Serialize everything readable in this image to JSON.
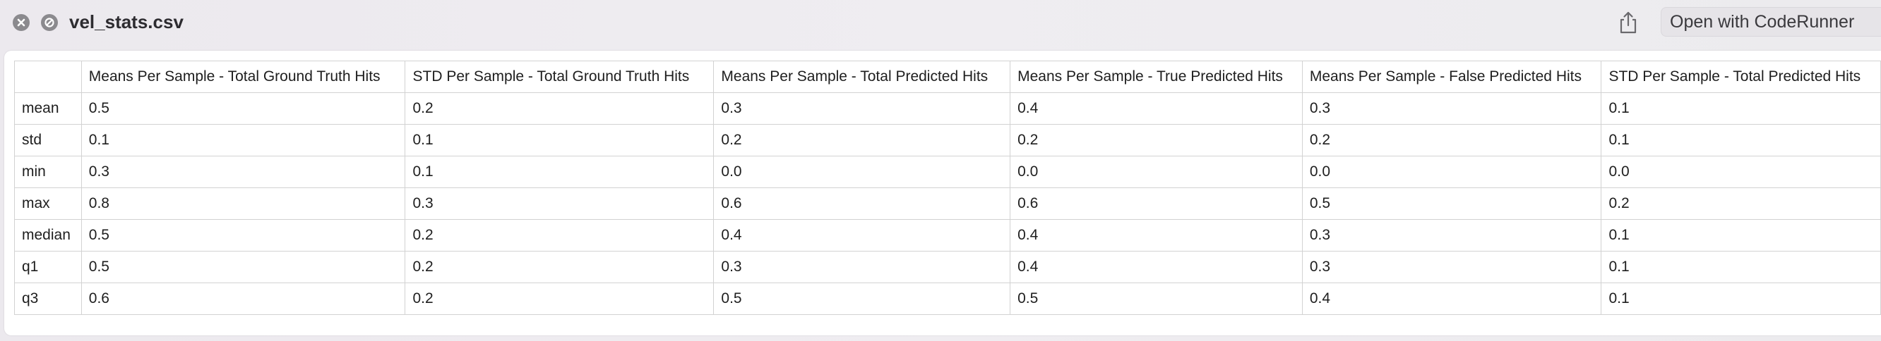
{
  "window": {
    "title": "vel_stats.csv",
    "open_with_label": "Open with CodeRunner"
  },
  "table": {
    "columns": [
      "",
      "Means Per Sample - Total Ground Truth Hits",
      "STD Per Sample - Total Ground Truth Hits",
      "Means Per Sample - Total Predicted Hits",
      "Means Per Sample - True Predicted Hits",
      "Means Per Sample - False Predicted Hits",
      "STD Per Sample - Total Predicted Hits"
    ],
    "rows": [
      [
        "mean",
        "0.5",
        "0.2",
        "0.3",
        "0.4",
        "0.3",
        "0.1"
      ],
      [
        "std",
        "0.1",
        "0.1",
        "0.2",
        "0.2",
        "0.2",
        "0.1"
      ],
      [
        "min",
        "0.3",
        "0.1",
        "0.0",
        "0.0",
        "0.0",
        "0.0"
      ],
      [
        "max",
        "0.8",
        "0.3",
        "0.6",
        "0.6",
        "0.5",
        "0.2"
      ],
      [
        "median",
        "0.5",
        "0.2",
        "0.4",
        "0.4",
        "0.3",
        "0.1"
      ],
      [
        "q1",
        "0.5",
        "0.2",
        "0.3",
        "0.4",
        "0.3",
        "0.1"
      ],
      [
        "q3",
        "0.6",
        "0.2",
        "0.5",
        "0.5",
        "0.4",
        "0.1"
      ]
    ]
  },
  "icons": {
    "close": "close-icon",
    "no-entry": "no-entry-icon",
    "share": "share-icon"
  },
  "colors": {
    "background": "#eeecf0",
    "grid": "#d2d2d2",
    "button": "#e6e4e8"
  }
}
